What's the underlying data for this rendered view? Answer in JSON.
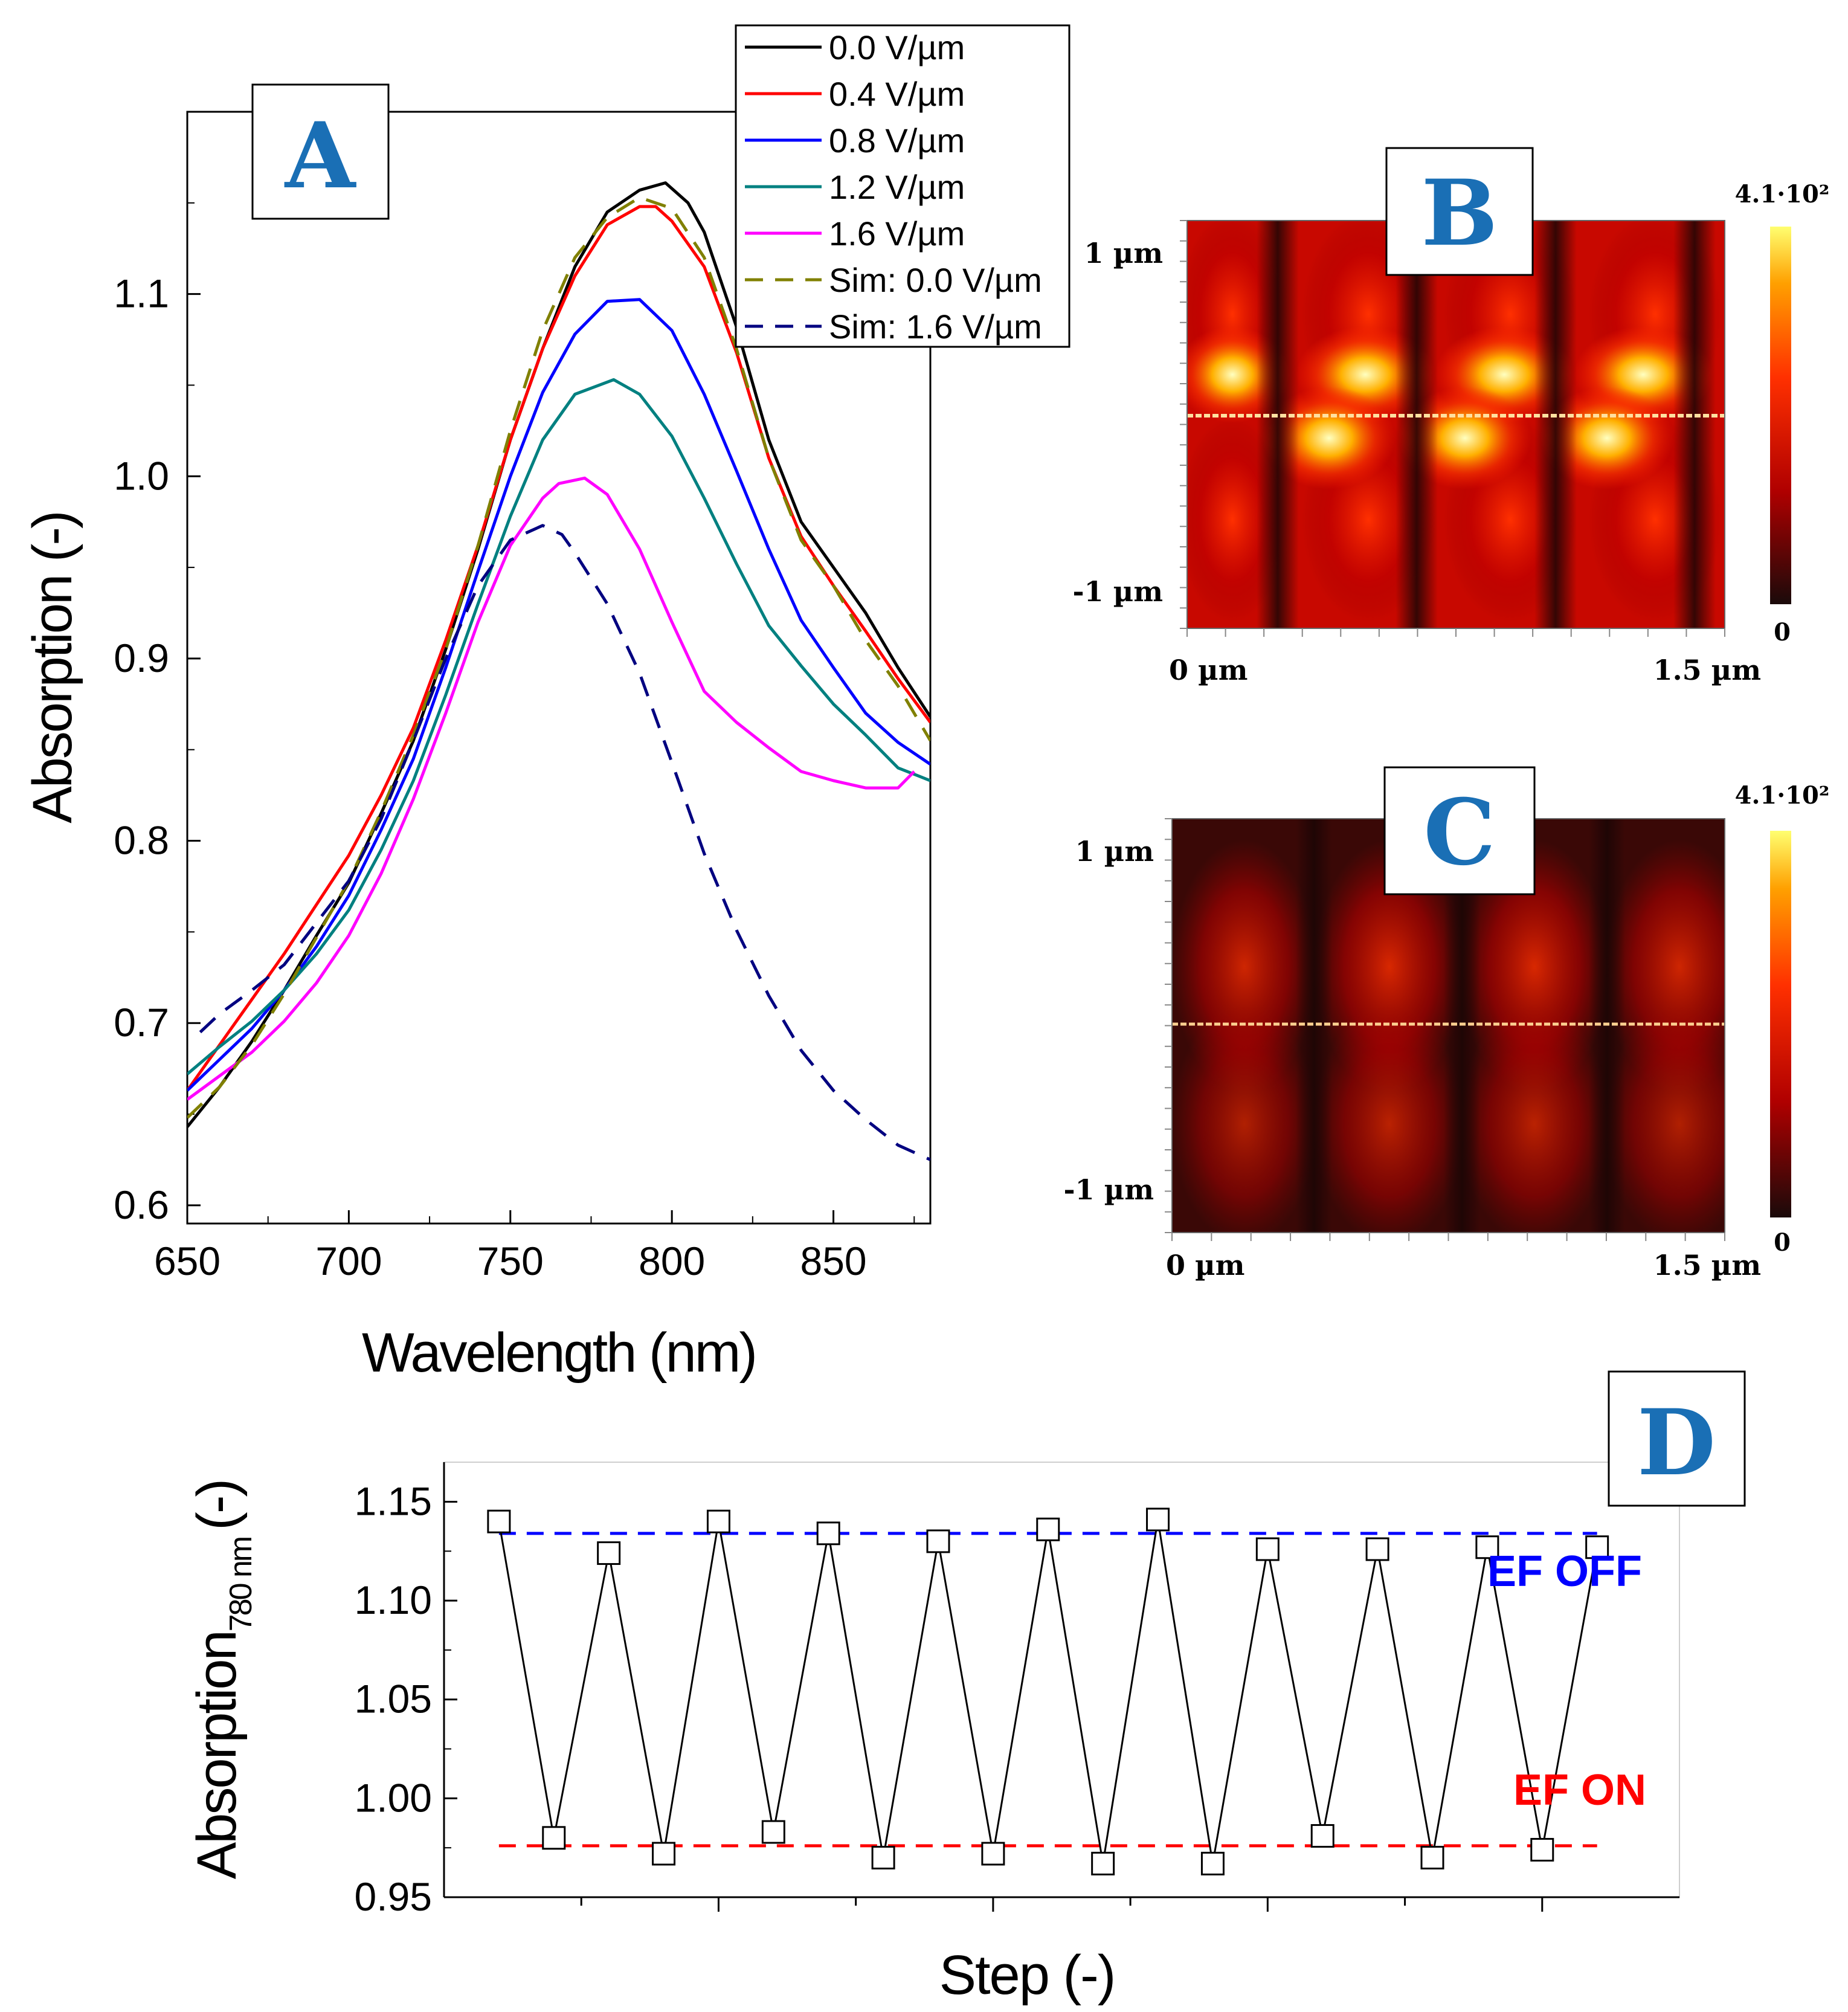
{
  "chart_data": [
    {
      "panel": "A",
      "type": "line",
      "xlabel": "Wavelength (nm)",
      "ylabel": "Absorption (-)",
      "xlim": [
        650,
        880
      ],
      "ylim": [
        0.59,
        1.2
      ],
      "xticks": [
        650,
        700,
        750,
        800,
        850
      ],
      "yticks": [
        0.6,
        0.7,
        0.8,
        0.9,
        1.0,
        1.1
      ],
      "xtick_labels": [
        "650",
        "700",
        "750",
        "800",
        "850"
      ],
      "ytick_labels": [
        "0.6",
        "0.7",
        "0.8",
        "0.9",
        "1.0",
        "1.1"
      ],
      "legend_position": "top-right, outside frame",
      "series": [
        {
          "name": "0.0 V/µm",
          "color": "#000000",
          "dash": "solid",
          "x": [
            650,
            660,
            670,
            680,
            690,
            700,
            710,
            720,
            730,
            740,
            750,
            760,
            770,
            780,
            790,
            798,
            805,
            810,
            820,
            830,
            840,
            850,
            860,
            870,
            880
          ],
          "y": [
            0.643,
            0.665,
            0.69,
            0.718,
            0.748,
            0.777,
            0.815,
            0.855,
            0.905,
            0.96,
            1.02,
            1.07,
            1.115,
            1.145,
            1.157,
            1.161,
            1.15,
            1.134,
            1.082,
            1.02,
            0.975,
            0.95,
            0.925,
            0.895,
            0.868
          ]
        },
        {
          "name": "0.4 V/µm",
          "color": "#ff0000",
          "dash": "solid",
          "x": [
            650,
            660,
            670,
            680,
            690,
            700,
            710,
            720,
            730,
            740,
            750,
            760,
            770,
            780,
            790,
            795,
            800,
            810,
            820,
            830,
            840,
            850,
            860,
            870,
            880
          ],
          "y": [
            0.663,
            0.688,
            0.713,
            0.738,
            0.765,
            0.792,
            0.825,
            0.862,
            0.91,
            0.962,
            1.02,
            1.07,
            1.11,
            1.138,
            1.148,
            1.148,
            1.14,
            1.115,
            1.068,
            1.01,
            0.967,
            0.94,
            0.915,
            0.889,
            0.865
          ]
        },
        {
          "name": "0.8 V/µm",
          "color": "#0000ff",
          "dash": "solid",
          "x": [
            650,
            660,
            670,
            680,
            690,
            700,
            710,
            720,
            730,
            740,
            750,
            760,
            770,
            780,
            790,
            800,
            810,
            820,
            830,
            840,
            850,
            860,
            870,
            880
          ],
          "y": [
            0.663,
            0.68,
            0.697,
            0.718,
            0.742,
            0.77,
            0.806,
            0.845,
            0.895,
            0.948,
            1.0,
            1.046,
            1.078,
            1.096,
            1.097,
            1.08,
            1.045,
            1.003,
            0.96,
            0.921,
            0.895,
            0.87,
            0.854,
            0.842
          ]
        },
        {
          "name": "1.2 V/µm",
          "color": "#008080",
          "dash": "solid",
          "x": [
            650,
            660,
            670,
            680,
            690,
            700,
            710,
            720,
            730,
            740,
            750,
            760,
            770,
            782,
            790,
            800,
            810,
            820,
            830,
            840,
            850,
            860,
            870,
            880
          ],
          "y": [
            0.672,
            0.687,
            0.701,
            0.718,
            0.738,
            0.762,
            0.795,
            0.833,
            0.88,
            0.93,
            0.978,
            1.02,
            1.045,
            1.053,
            1.045,
            1.022,
            0.988,
            0.952,
            0.918,
            0.896,
            0.875,
            0.858,
            0.84,
            0.833
          ]
        },
        {
          "name": "1.6 V/µm",
          "color": "#ff00ff",
          "dash": "solid",
          "x": [
            650,
            660,
            670,
            680,
            690,
            700,
            710,
            720,
            730,
            740,
            750,
            760,
            765,
            773,
            780,
            790,
            800,
            810,
            820,
            830,
            840,
            850,
            860,
            870,
            875
          ],
          "y": [
            0.658,
            0.671,
            0.684,
            0.701,
            0.722,
            0.748,
            0.782,
            0.823,
            0.87,
            0.92,
            0.962,
            0.988,
            0.996,
            0.999,
            0.99,
            0.96,
            0.92,
            0.882,
            0.865,
            0.851,
            0.838,
            0.833,
            0.829,
            0.829,
            0.838
          ]
        },
        {
          "name": "Sim: 0.0 V/µm",
          "color": "#808000",
          "dash": "dashed",
          "x": [
            650,
            660,
            670,
            680,
            690,
            700,
            710,
            720,
            730,
            740,
            750,
            760,
            770,
            780,
            790,
            800,
            810,
            820,
            830,
            840,
            850,
            860,
            870,
            880
          ],
          "y": [
            0.648,
            0.665,
            0.688,
            0.716,
            0.747,
            0.778,
            0.816,
            0.858,
            0.905,
            0.962,
            1.025,
            1.08,
            1.12,
            1.142,
            1.153,
            1.147,
            1.12,
            1.07,
            1.01,
            0.965,
            0.94,
            0.91,
            0.885,
            0.855
          ]
        },
        {
          "name": "Sim: 1.6 V/µm",
          "color": "#000080",
          "dash": "dashed",
          "x": [
            654,
            660,
            670,
            680,
            690,
            700,
            710,
            720,
            730,
            740,
            750,
            760,
            766,
            770,
            780,
            790,
            800,
            810,
            820,
            830,
            840,
            850,
            860,
            870,
            880
          ],
          "y": [
            0.695,
            0.705,
            0.718,
            0.732,
            0.755,
            0.778,
            0.812,
            0.855,
            0.9,
            0.94,
            0.965,
            0.973,
            0.968,
            0.958,
            0.93,
            0.892,
            0.843,
            0.793,
            0.751,
            0.715,
            0.685,
            0.663,
            0.647,
            0.633,
            0.625
          ]
        }
      ]
    },
    {
      "panel": "B",
      "type": "heatmap",
      "x_tick_labels": [
        "0 µm",
        "1.5 µm"
      ],
      "y_tick_labels": [
        "1 µm",
        "-1 µm"
      ],
      "colorbar_max_label": "4.1·10²",
      "colorbar_min_label": "0",
      "colormap": [
        "#1a0a0a",
        "#c00000",
        "#ff4000",
        "#ffc000",
        "#ffff80"
      ],
      "field_level": "high"
    },
    {
      "panel": "C",
      "type": "heatmap",
      "x_tick_labels": [
        "0 µm",
        "1.5 µm"
      ],
      "y_tick_labels": [
        "1 µm",
        "-1 µm"
      ],
      "colorbar_max_label": "4.1·10²",
      "colorbar_min_label": "0",
      "colormap": [
        "#1a0a0a",
        "#c00000",
        "#ff4000",
        "#ffc000",
        "#ffff80"
      ],
      "field_level": "low"
    },
    {
      "panel": "D",
      "type": "line",
      "xlabel": "Step (-)",
      "ylabel_main": "Absorption",
      "ylabel_sub": "780 nm",
      "ylabel_tail": "(-)",
      "ylim": [
        0.95,
        1.17
      ],
      "yticks": [
        0.95,
        1.0,
        1.05,
        1.1,
        1.15
      ],
      "ytick_labels": [
        "0.95",
        "1.00",
        "1.05",
        "1.10",
        "1.15"
      ],
      "xlim": [
        0,
        22.5
      ],
      "x": [
        1,
        2,
        3,
        4,
        5,
        6,
        7,
        8,
        9,
        10,
        11,
        12,
        13,
        14,
        15,
        16,
        17,
        18,
        19,
        20,
        21
      ],
      "y": [
        1.14,
        0.98,
        1.124,
        0.972,
        1.14,
        0.983,
        1.134,
        0.97,
        1.13,
        0.972,
        1.136,
        0.967,
        1.141,
        0.967,
        1.126,
        0.981,
        1.126,
        0.97,
        1.127,
        0.974,
        1.127
      ],
      "line_color": "#000000",
      "marker": "open-square",
      "reference_lines": [
        {
          "label": "EF OFF",
          "y": 1.134,
          "color": "#0000ff"
        },
        {
          "label": "EF ON",
          "y": 0.976,
          "color": "#ff0000"
        }
      ]
    }
  ],
  "panel_labels": {
    "a": "A",
    "b": "B",
    "c": "C",
    "d": "D"
  },
  "label_color": "#1a6fb5"
}
